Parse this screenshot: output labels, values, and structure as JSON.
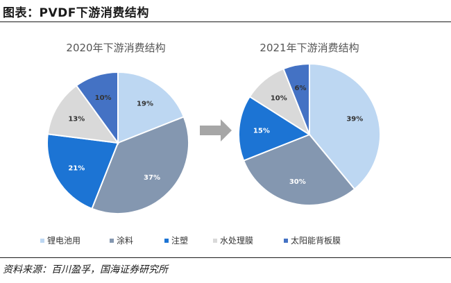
{
  "header": {
    "title": "图表：PVDF下游消费结构"
  },
  "footer": {
    "source": "资料来源：百川盈孚，国海证券研究所"
  },
  "chart_data": [
    {
      "type": "pie",
      "title": "2020年下游消费结构",
      "categories": [
        "锂电池用",
        "涂料",
        "注塑",
        "水处理膜",
        "太阳能背板膜"
      ],
      "values": [
        19,
        37,
        21,
        13,
        10
      ],
      "labels": [
        "19%",
        "37%",
        "21%",
        "13%",
        "10%"
      ]
    },
    {
      "type": "pie",
      "title": "2021年下游消费结构",
      "categories": [
        "锂电池用",
        "涂料",
        "注塑",
        "水处理膜",
        "太阳能背板膜"
      ],
      "values": [
        39,
        30,
        15,
        10,
        6
      ],
      "labels": [
        "39%",
        "30%",
        "15%",
        "10%",
        "6%"
      ]
    }
  ],
  "legend": {
    "items": [
      "锂电池用",
      "涂料",
      "注塑",
      "水处理膜",
      "太阳能背板膜"
    ]
  },
  "colors": {
    "锂电池用": "#bdd7f2",
    "涂料": "#8497b0",
    "注塑": "#1c74d4",
    "水处理膜": "#d9d9d9",
    "太阳能背板膜": "#4472c4",
    "arrow": "#a6a6a6"
  },
  "label_colors": {
    "锂电池用": "#333333",
    "涂料": "#ffffff",
    "注塑": "#ffffff",
    "水处理膜": "#333333",
    "太阳能背板膜": "#333333"
  }
}
